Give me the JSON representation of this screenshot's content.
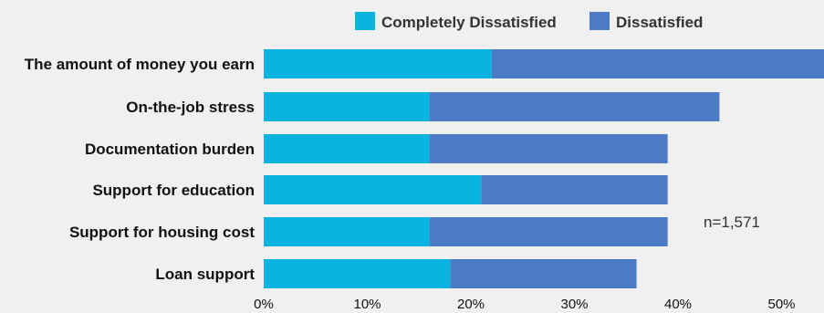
{
  "colors": {
    "background": "#f0f0f0",
    "completely_dissatisfied": "#0ab4e0",
    "dissatisfied": "#4b7bc4"
  },
  "chart_data": {
    "type": "bar",
    "orientation": "horizontal",
    "stacked": true,
    "categories": [
      "The amount of money you earn",
      "On-the-job stress",
      "Documentation burden",
      "Support for education",
      "Support for housing cost",
      "Loan support"
    ],
    "series": [
      {
        "name": "Completely Dissatisfied",
        "color": "#0ab4e0",
        "values": [
          22,
          16,
          16,
          21,
          16,
          18
        ]
      },
      {
        "name": "Dissatisfied",
        "color": "#4b7bc4",
        "values": [
          33,
          28,
          23,
          18,
          23,
          18
        ]
      }
    ],
    "xlim": [
      0,
      52
    ],
    "xticks": [
      0,
      10,
      20,
      30,
      40,
      50
    ],
    "xtick_labels": [
      "0%",
      "10%",
      "20%",
      "30%",
      "40%",
      "50%"
    ],
    "legend_position": "top",
    "grid": false,
    "annotation": "n=1,571"
  }
}
